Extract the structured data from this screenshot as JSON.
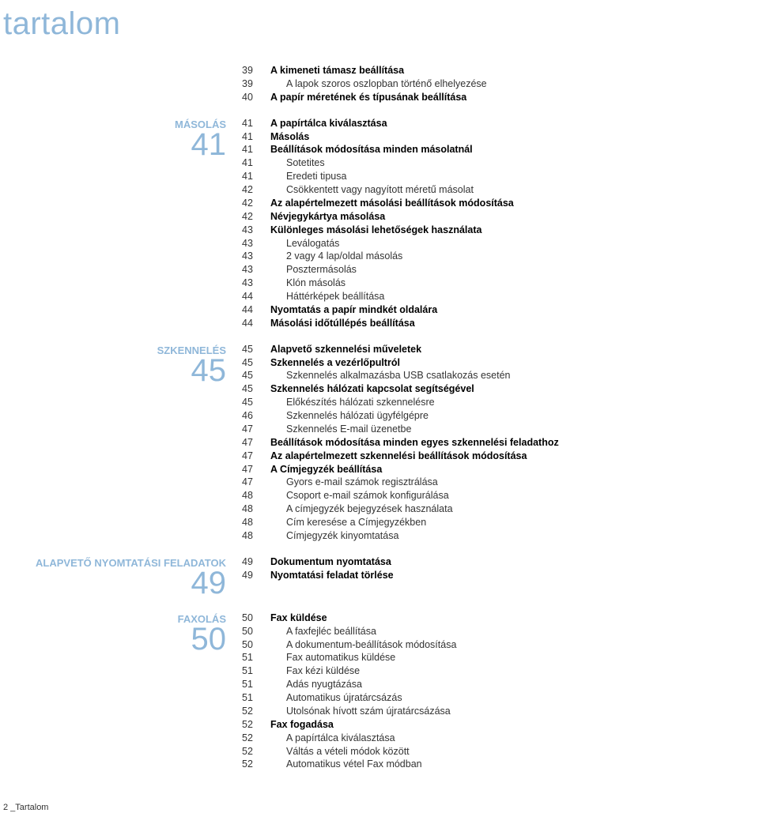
{
  "colors": {
    "accent": "#8fb7d9",
    "text": "#333333",
    "bold_text": "#000000",
    "background": "#ffffff"
  },
  "typography": {
    "title_fontsize": 40,
    "section_label_fontsize": 13,
    "section_num_fontsize": 40,
    "body_fontsize": 12.5,
    "footer_fontsize": 11,
    "font_family": "Arial"
  },
  "title": "tartalom",
  "footer": "2 _Tartalom",
  "sections": [
    {
      "label": "",
      "num": "",
      "items": [
        {
          "page": "39",
          "text": "A kimeneti támasz beállítása",
          "bold": true,
          "indent": false
        },
        {
          "page": "39",
          "text": "A lapok szoros oszlopban történő elhelyezése",
          "bold": false,
          "indent": true
        },
        {
          "page": "40",
          "text": "A papír méretének és típusának beállítása",
          "bold": true,
          "indent": false
        }
      ]
    },
    {
      "label": "MÁSOLÁS",
      "num": "41",
      "items": [
        {
          "page": "41",
          "text": "A papírtálca kiválasztása",
          "bold": true,
          "indent": false
        },
        {
          "page": "41",
          "text": "Másolás",
          "bold": true,
          "indent": false
        },
        {
          "page": "41",
          "text": "Beállítások módosítása minden másolatnál",
          "bold": true,
          "indent": false
        },
        {
          "page": "41",
          "text": "Sotetites",
          "bold": false,
          "indent": true
        },
        {
          "page": "41",
          "text": "Eredeti tipusa",
          "bold": false,
          "indent": true
        },
        {
          "page": "42",
          "text": "Csökkentett vagy nagyított méretű másolat",
          "bold": false,
          "indent": true
        },
        {
          "page": "42",
          "text": "Az alapértelmezett másolási beállítások módosítása",
          "bold": true,
          "indent": false
        },
        {
          "page": "42",
          "text": "Névjegykártya másolása",
          "bold": true,
          "indent": false
        },
        {
          "page": "43",
          "text": "Különleges másolási lehetőségek használata",
          "bold": true,
          "indent": false
        },
        {
          "page": "43",
          "text": "Leválogatás",
          "bold": false,
          "indent": true
        },
        {
          "page": "43",
          "text": "2 vagy 4 lap/oldal másolás",
          "bold": false,
          "indent": true
        },
        {
          "page": "43",
          "text": "Posztermásolás",
          "bold": false,
          "indent": true
        },
        {
          "page": "43",
          "text": "Klón másolás",
          "bold": false,
          "indent": true
        },
        {
          "page": "44",
          "text": "Háttérképek beállítása",
          "bold": false,
          "indent": true
        },
        {
          "page": "44",
          "text": "Nyomtatás a papír mindkét oldalára",
          "bold": true,
          "indent": false
        },
        {
          "page": "44",
          "text": "Másolási időtúllépés beállítása",
          "bold": true,
          "indent": false
        }
      ]
    },
    {
      "label": "SZKENNELÉS",
      "num": "45",
      "items": [
        {
          "page": "45",
          "text": "Alapvető szkennelési műveletek",
          "bold": true,
          "indent": false
        },
        {
          "page": "45",
          "text": "Szkennelés a vezérlőpultról",
          "bold": true,
          "indent": false
        },
        {
          "page": "45",
          "text": "Szkennelés alkalmazásba USB csatlakozás esetén",
          "bold": false,
          "indent": true
        },
        {
          "page": "45",
          "text": "Szkennelés hálózati kapcsolat segítségével",
          "bold": true,
          "indent": false
        },
        {
          "page": "45",
          "text": "Előkészítés hálózati szkennelésre",
          "bold": false,
          "indent": true
        },
        {
          "page": "46",
          "text": "Szkennelés hálózati ügyfélgépre",
          "bold": false,
          "indent": true
        },
        {
          "page": "47",
          "text": "Szkennelés E-mail üzenetbe",
          "bold": false,
          "indent": true
        },
        {
          "page": "47",
          "text": "Beállítások módosítása minden egyes szkennelési feladathoz",
          "bold": true,
          "indent": false
        },
        {
          "page": "47",
          "text": "Az alapértelmezett szkennelési beállítások módosítása",
          "bold": true,
          "indent": false
        },
        {
          "page": "47",
          "text": "A Címjegyzék beállítása",
          "bold": true,
          "indent": false
        },
        {
          "page": "47",
          "text": "Gyors e-mail számok regisztrálása",
          "bold": false,
          "indent": true
        },
        {
          "page": "48",
          "text": "Csoport e-mail számok konfigurálása",
          "bold": false,
          "indent": true
        },
        {
          "page": "48",
          "text": "A címjegyzék bejegyzések használata",
          "bold": false,
          "indent": true
        },
        {
          "page": "48",
          "text": "Cím keresése a Címjegyzékben",
          "bold": false,
          "indent": true
        },
        {
          "page": "48",
          "text": "Címjegyzék kinyomtatása",
          "bold": false,
          "indent": true
        }
      ]
    },
    {
      "label": "ALAPVETŐ NYOMTATÁSI FELADATOK",
      "num": "49",
      "items": [
        {
          "page": "49",
          "text": "Dokumentum nyomtatása",
          "bold": true,
          "indent": false
        },
        {
          "page": "49",
          "text": "Nyomtatási feladat törlése",
          "bold": true,
          "indent": false
        }
      ]
    },
    {
      "label": "FAXOLÁS",
      "num": "50",
      "items": [
        {
          "page": "50",
          "text": "Fax küldése",
          "bold": true,
          "indent": false
        },
        {
          "page": "50",
          "text": "A faxfejléc beállítása",
          "bold": false,
          "indent": true
        },
        {
          "page": "50",
          "text": "A dokumentum-beállítások módosítása",
          "bold": false,
          "indent": true
        },
        {
          "page": "51",
          "text": "Fax automatikus küldése",
          "bold": false,
          "indent": true
        },
        {
          "page": "51",
          "text": "Fax kézi küldése",
          "bold": false,
          "indent": true
        },
        {
          "page": "51",
          "text": "Adás nyugtázása",
          "bold": false,
          "indent": true
        },
        {
          "page": "51",
          "text": "Automatikus újratárcsázás",
          "bold": false,
          "indent": true
        },
        {
          "page": "52",
          "text": "Utolsónak hívott szám újratárcsázása",
          "bold": false,
          "indent": true
        },
        {
          "page": "52",
          "text": "Fax fogadása",
          "bold": true,
          "indent": false
        },
        {
          "page": "52",
          "text": "A papírtálca kiválasztása",
          "bold": false,
          "indent": true
        },
        {
          "page": "52",
          "text": "Váltás a vételi módok között",
          "bold": false,
          "indent": true
        },
        {
          "page": "52",
          "text": "Automatikus vétel Fax módban",
          "bold": false,
          "indent": true
        }
      ]
    }
  ]
}
